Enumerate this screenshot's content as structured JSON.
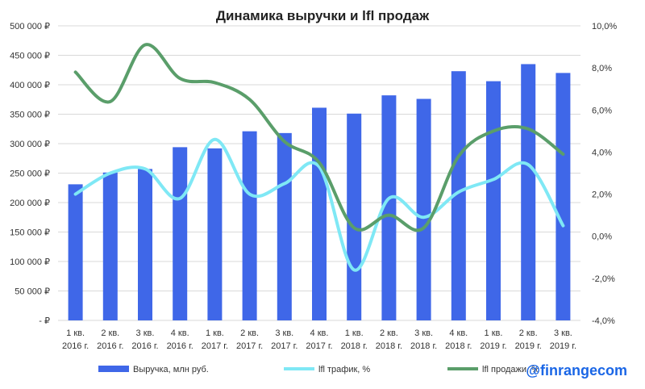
{
  "chart_data": {
    "type": "bar",
    "title": "Динамика выручки и lfl продаж",
    "categories": [
      [
        "1 кв.",
        "2016 г."
      ],
      [
        "2 кв.",
        "2016 г."
      ],
      [
        "3 кв.",
        "2016 г."
      ],
      [
        "4 кв.",
        "2016 г."
      ],
      [
        "1 кв.",
        "2017 г."
      ],
      [
        "2 кв.",
        "2017 г."
      ],
      [
        "3 кв.",
        "2017 г."
      ],
      [
        "4 кв.",
        "2017 г."
      ],
      [
        "1 кв.",
        "2018 г."
      ],
      [
        "2 кв.",
        "2018 г."
      ],
      [
        "3 кв.",
        "2018 г."
      ],
      [
        "4 кв.",
        "2018 г."
      ],
      [
        "1 кв.",
        "2019 г."
      ],
      [
        "2 кв.",
        "2019 г."
      ],
      [
        "3 кв.",
        "2019 г."
      ]
    ],
    "series": [
      {
        "name": "Выручка, млн руб.",
        "type": "bar",
        "axis": "left",
        "color": "#3f67e8",
        "values": [
          231000,
          251000,
          257000,
          294000,
          292000,
          321000,
          318000,
          361000,
          351000,
          382000,
          376000,
          423000,
          406000,
          435000,
          420000
        ]
      },
      {
        "name": "lfl трафик, %",
        "type": "line",
        "axis": "right",
        "color": "#7fe8f5",
        "values": [
          2.0,
          3.0,
          3.2,
          1.8,
          4.6,
          2.0,
          2.5,
          3.3,
          -1.6,
          1.8,
          0.9,
          2.1,
          2.7,
          3.4,
          0.5
        ]
      },
      {
        "name": "lfl продажи, %",
        "type": "line",
        "axis": "right",
        "color": "#5a9e6a",
        "values": [
          7.8,
          6.4,
          9.1,
          7.5,
          7.3,
          6.5,
          4.5,
          3.5,
          0.4,
          1.0,
          0.4,
          3.8,
          5.0,
          5.1,
          3.9
        ]
      }
    ],
    "y_left": {
      "min": 0,
      "max": 500000,
      "step": 50000,
      "tick_labels": [
        "-   ₽",
        "50 000 ₽",
        "100 000 ₽",
        "150 000 ₽",
        "200 000 ₽",
        "250 000 ₽",
        "300 000 ₽",
        "350 000 ₽",
        "400 000 ₽",
        "450 000 ₽",
        "500 000 ₽"
      ]
    },
    "y_right": {
      "min": -4,
      "max": 10,
      "step": 2,
      "tick_labels": [
        "-4,0%",
        "-2,0%",
        "0,0%",
        "2,0%",
        "4,0%",
        "6,0%",
        "8,0%",
        "10,0%"
      ]
    },
    "grid": true,
    "legend_position": "bottom"
  },
  "watermark": "@finrangecom"
}
